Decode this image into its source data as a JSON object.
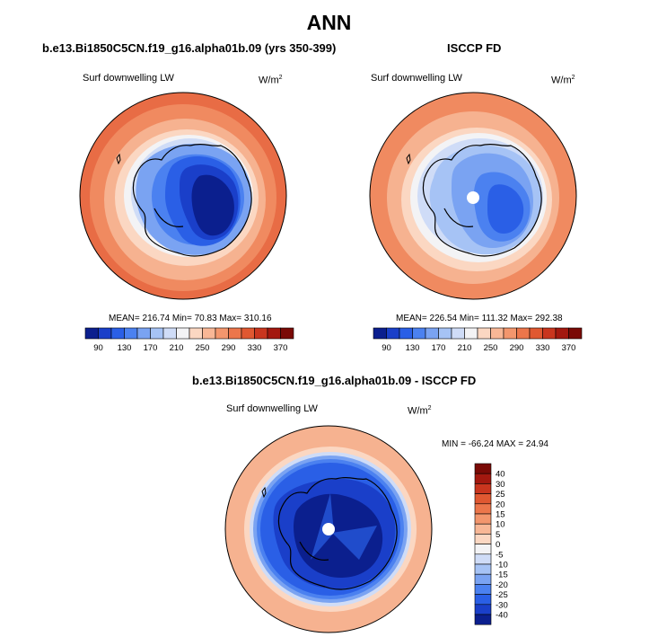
{
  "title": "ANN",
  "panels": [
    {
      "title": "b.e13.Bi1850C5CN.f19_g16.alpha01b.09 (yrs 350-399)",
      "variable": "Surf downwelling LW",
      "units": "W/m",
      "units_sup": "2",
      "stats_text": "MEAN= 216.74  Min= 70.83  Max= 310.16"
    },
    {
      "title": "ISCCP FD",
      "variable": "Surf downwelling LW",
      "units": "W/m",
      "units_sup": "2",
      "stats_text": "MEAN= 226.54  Min= 111.32  Max= 292.38"
    },
    {
      "title": "b.e13.Bi1850C5CN.f19_g16.alpha01b.09 - ISCCP FD",
      "variable": "Surf downwelling LW",
      "units": "W/m",
      "units_sup": "2",
      "stats_text": "MIN = -66.24 MAX =  24.94"
    }
  ],
  "chart_data": [
    {
      "type": "heatmap",
      "projection": "south polar stereographic",
      "title": "b.e13.Bi1850C5CN.f19_g16.alpha01b.09 (yrs 350-399)",
      "variable": "Surf downwelling LW",
      "units": "W/m2",
      "mean": 216.74,
      "min": 70.83,
      "max": 310.16,
      "colorbar_levels": [
        90,
        110,
        130,
        150,
        170,
        190,
        210,
        230,
        250,
        270,
        290,
        310,
        330,
        350,
        370
      ],
      "colorbar_tick_labels": [
        "90",
        "130",
        "170",
        "210",
        "250",
        "290",
        "330",
        "370"
      ],
      "colorbar_colors": [
        "#0b1f8e",
        "#1a3fc9",
        "#2a5fe6",
        "#4b81f0",
        "#7aa3f2",
        "#a6c3f5",
        "#cfdcf7",
        "#f3f3f5",
        "#fbd7c2",
        "#f8b796",
        "#f3966d",
        "#ec764b",
        "#e05831",
        "#c9351e",
        "#a3180f",
        "#7a0a06"
      ]
    },
    {
      "type": "heatmap",
      "projection": "south polar stereographic",
      "title": "ISCCP FD",
      "variable": "Surf downwelling LW",
      "units": "W/m2",
      "mean": 226.54,
      "min": 111.32,
      "max": 292.38,
      "colorbar_levels": [
        90,
        110,
        130,
        150,
        170,
        190,
        210,
        230,
        250,
        270,
        290,
        310,
        330,
        350,
        370
      ],
      "colorbar_tick_labels": [
        "90",
        "130",
        "170",
        "210",
        "250",
        "290",
        "330",
        "370"
      ],
      "colorbar_colors": [
        "#0b1f8e",
        "#1a3fc9",
        "#2a5fe6",
        "#4b81f0",
        "#7aa3f2",
        "#a6c3f5",
        "#cfdcf7",
        "#f3f3f5",
        "#fbd7c2",
        "#f8b796",
        "#f3966d",
        "#ec764b",
        "#e05831",
        "#c9351e",
        "#a3180f",
        "#7a0a06"
      ]
    },
    {
      "type": "heatmap",
      "projection": "south polar stereographic",
      "title": "b.e13.Bi1850C5CN.f19_g16.alpha01b.09 - ISCCP FD",
      "variable": "Surf downwelling LW",
      "units": "W/m2",
      "min": -66.24,
      "max": 24.94,
      "colorbar_levels": [
        40,
        30,
        25,
        20,
        15,
        10,
        5,
        0,
        -5,
        -10,
        -15,
        -20,
        -25,
        -30,
        -40
      ],
      "colorbar_tick_labels": [
        "40",
        "30",
        "25",
        "20",
        "15",
        "10",
        "5",
        "0",
        "-5",
        "-10",
        "-15",
        "-20",
        "-25",
        "-30",
        "-40"
      ],
      "colorbar_colors": [
        "#7a0a06",
        "#a3180f",
        "#c9351e",
        "#e05831",
        "#ec764b",
        "#f3966d",
        "#f8b796",
        "#fbd7c2",
        "#f3f3f5",
        "#cfdcf7",
        "#a6c3f5",
        "#7aa3f2",
        "#4b81f0",
        "#2a5fe6",
        "#1a3fc9",
        "#0b1f8e"
      ]
    }
  ]
}
